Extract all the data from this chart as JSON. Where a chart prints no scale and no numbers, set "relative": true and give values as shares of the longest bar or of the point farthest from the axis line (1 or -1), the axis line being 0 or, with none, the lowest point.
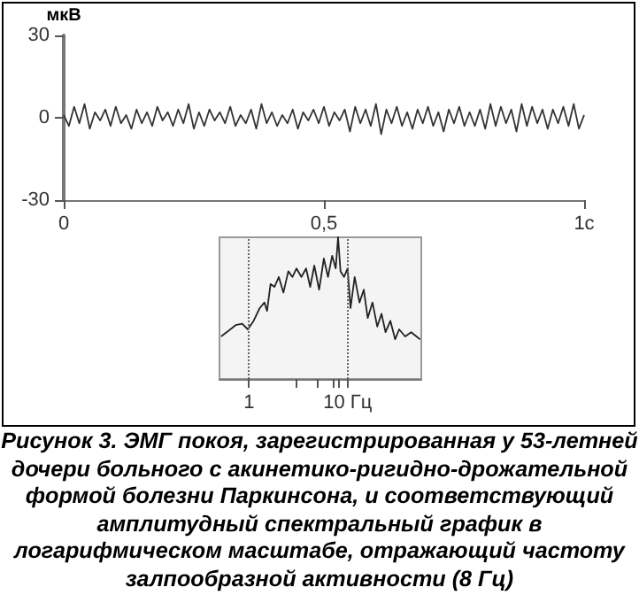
{
  "chart_data": [
    {
      "type": "line",
      "ylabel": "мкВ",
      "xlim": [
        0,
        1
      ],
      "ylim": [
        -30,
        30
      ],
      "xticks": [
        0,
        {
          "value": 0.5,
          "label": "0,5"
        },
        {
          "value": 1,
          "label": "1с"
        }
      ],
      "yticks": [
        -30,
        0,
        30
      ],
      "marker": "none",
      "x": [
        0,
        0.01,
        0.02,
        0.03,
        0.04,
        0.05,
        0.06,
        0.07,
        0.08,
        0.09,
        0.1,
        0.11,
        0.12,
        0.13,
        0.14,
        0.15,
        0.16,
        0.17,
        0.18,
        0.19,
        0.2,
        0.21,
        0.22,
        0.23,
        0.24,
        0.25,
        0.26,
        0.27,
        0.28,
        0.29,
        0.3,
        0.31,
        0.32,
        0.33,
        0.34,
        0.35,
        0.36,
        0.37,
        0.38,
        0.39,
        0.4,
        0.41,
        0.42,
        0.43,
        0.44,
        0.45,
        0.46,
        0.47,
        0.48,
        0.49,
        0.5,
        0.51,
        0.52,
        0.53,
        0.54,
        0.55,
        0.56,
        0.57,
        0.58,
        0.59,
        0.6,
        0.61,
        0.62,
        0.63,
        0.64,
        0.65,
        0.66,
        0.67,
        0.68,
        0.69,
        0.7,
        0.71,
        0.72,
        0.73,
        0.74,
        0.75,
        0.76,
        0.77,
        0.78,
        0.79,
        0.8,
        0.81,
        0.82,
        0.83,
        0.84,
        0.85,
        0.86,
        0.87,
        0.88,
        0.89,
        0.9,
        0.91,
        0.92,
        0.93,
        0.94,
        0.95,
        0.96,
        0.97,
        0.98,
        0.99,
        1
      ],
      "series": [
        {
          "color": "#333333",
          "values": [
            1,
            -3,
            4,
            -2,
            5,
            -4,
            2,
            -1,
            3,
            -3,
            4,
            -2,
            1,
            -4,
            3,
            -2,
            2,
            -3,
            4,
            -1,
            2,
            -3,
            3,
            -2,
            5,
            -4,
            2,
            -3,
            3,
            -1,
            2,
            -2,
            4,
            -3,
            1,
            -2,
            3,
            -4,
            5,
            -2,
            2,
            -3,
            1,
            -2,
            3,
            -4,
            2,
            -1,
            3,
            -2,
            4,
            -3,
            2,
            -1,
            3,
            -5,
            4,
            -2,
            3,
            -3,
            5,
            -6,
            3,
            -2,
            4,
            -3,
            2,
            -4,
            3,
            -2,
            4,
            -3,
            2,
            -5,
            3,
            -2,
            4,
            -3,
            2,
            -3,
            3,
            -4,
            5,
            -3,
            4,
            -2,
            3,
            -5,
            5,
            -3,
            4,
            -2,
            3,
            -4,
            3,
            -2,
            4,
            -3,
            5,
            -4,
            1
          ]
        }
      ]
    },
    {
      "type": "line",
      "relative": true,
      "log": "x",
      "xlim": [
        0.5,
        56
      ],
      "xticks": [
        1,
        {
          "value": 3,
          "label": null
        },
        {
          "value": 5,
          "label": null
        },
        {
          "value": 7,
          "label": null
        },
        {
          "value": 8,
          "label": null
        },
        {
          "value": 10,
          "label": "10 Гц"
        }
      ],
      "marker": "none",
      "ref_lines": [
        {
          "axis": "x",
          "value": 1,
          "color": "#666666",
          "line_style": "dotted"
        },
        {
          "axis": "x",
          "value": 10,
          "color": "#666666",
          "line_style": "dotted"
        }
      ],
      "x": [
        0.52,
        0.73,
        0.85,
        0.97,
        1.11,
        1.28,
        1.43,
        1.52,
        1.65,
        1.81,
        2.0,
        2.23,
        2.5,
        2.75,
        3.03,
        3.39,
        3.79,
        4.17,
        4.59,
        5.14,
        5.74,
        6.32,
        6.97,
        7.57,
        8.0,
        8.47,
        9.2,
        10,
        10.7,
        11.8,
        13.2,
        14.6,
        16.0,
        17.9,
        20.0,
        22.1,
        24.3,
        27.2,
        30.4,
        33.4,
        38.4,
        44.2,
        54.4
      ],
      "series": [
        {
          "color": "#222222",
          "values": [
            0.3,
            0.38,
            0.39,
            0.35,
            0.41,
            0.5,
            0.54,
            0.48,
            0.67,
            0.65,
            0.72,
            0.61,
            0.76,
            0.72,
            0.78,
            0.72,
            0.78,
            0.65,
            0.8,
            0.63,
            0.85,
            0.72,
            0.87,
            0.78,
            1.0,
            0.76,
            0.72,
            0.78,
            0.5,
            0.72,
            0.54,
            0.63,
            0.43,
            0.54,
            0.37,
            0.46,
            0.33,
            0.41,
            0.28,
            0.35,
            0.3,
            0.33,
            0.28
          ]
        }
      ],
      "annotations": [
        "Рисунок 3. ЭМГ покоя, зарегистрированная у 53-летней дочери больного с акинетико-ригидно-дрожательной формой болезни Паркинсона, и соответствующий амплитудный спектральный график в логарифмическом масштабе, отражающий частоту залпообразной активности (8 Гц)"
      ]
    }
  ]
}
